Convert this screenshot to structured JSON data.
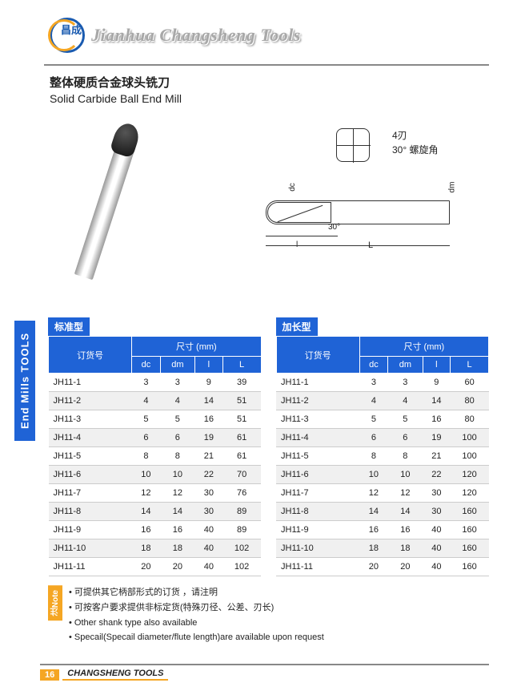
{
  "header": {
    "logo_cn": "昌成",
    "title": "Jianhua Changsheng Tools"
  },
  "product": {
    "title_cn": "整体硬质合金球头铣刀",
    "title_en": "Solid Carbide Ball End Mill"
  },
  "diagram": {
    "flutes": "4刃",
    "helix": "30° 螺旋角",
    "dc": "dc",
    "dm": "dm",
    "angle": "30°",
    "l_small": "l",
    "l_big": "L"
  },
  "side_tab": "End Mills TOOLS",
  "tables": {
    "hdr_order": "订货号",
    "hdr_dim": "尺寸 (mm)",
    "cols": [
      "dc",
      "dm",
      "l",
      "L"
    ],
    "std": {
      "caption": "标准型",
      "rows": [
        [
          "JH11-1",
          3,
          3,
          9,
          39
        ],
        [
          "JH11-2",
          4,
          4,
          14,
          51
        ],
        [
          "JH11-3",
          5,
          5,
          16,
          51
        ],
        [
          "JH11-4",
          6,
          6,
          19,
          61
        ],
        [
          "JH11-5",
          8,
          8,
          21,
          61
        ],
        [
          "JH11-6",
          10,
          10,
          22,
          70
        ],
        [
          "JH11-7",
          12,
          12,
          30,
          76
        ],
        [
          "JH11-8",
          14,
          14,
          30,
          89
        ],
        [
          "JH11-9",
          16,
          16,
          40,
          89
        ],
        [
          "JH11-10",
          18,
          18,
          40,
          102
        ],
        [
          "JH11-11",
          20,
          20,
          40,
          102
        ]
      ]
    },
    "long": {
      "caption": "加长型",
      "rows": [
        [
          "JH11-1",
          3,
          3,
          9,
          60
        ],
        [
          "JH11-2",
          4,
          4,
          14,
          80
        ],
        [
          "JH11-3",
          5,
          5,
          16,
          80
        ],
        [
          "JH11-4",
          6,
          6,
          19,
          100
        ],
        [
          "JH11-5",
          8,
          8,
          21,
          100
        ],
        [
          "JH11-6",
          10,
          10,
          22,
          120
        ],
        [
          "JH11-7",
          12,
          12,
          30,
          120
        ],
        [
          "JH11-8",
          14,
          14,
          30,
          160
        ],
        [
          "JH11-9",
          16,
          16,
          40,
          160
        ],
        [
          "JH11-10",
          18,
          18,
          40,
          160
        ],
        [
          "JH11-11",
          20,
          20,
          40,
          160
        ]
      ]
    }
  },
  "notes": {
    "tab": "注Note",
    "items": [
      "可提供其它柄部形式的订货 ，请注明",
      "可按客户要求提供非标定货(特殊刃径、公差、刃长)",
      "Other shank type also available",
      "Specail(Specail diameter/flute length)are available upon request"
    ]
  },
  "footer": {
    "page": "16",
    "brand": "CHANGSHENG TOOLS"
  }
}
